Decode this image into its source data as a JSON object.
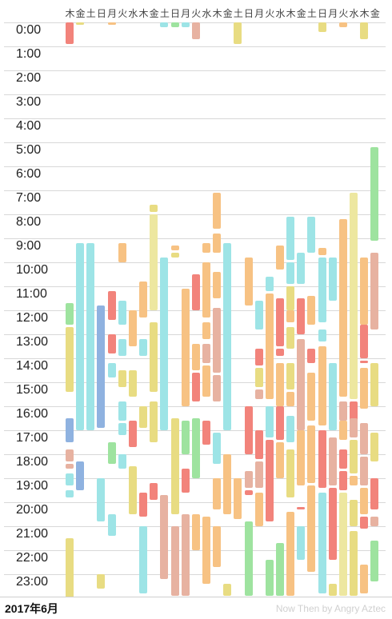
{
  "days": [
    "木",
    "金",
    "土",
    "日",
    "月",
    "火",
    "水",
    "木",
    "金",
    "土",
    "日",
    "月",
    "火",
    "水",
    "木",
    "金",
    "土",
    "日",
    "月",
    "火",
    "水",
    "木",
    "金",
    "土",
    "日",
    "月",
    "火",
    "水",
    "木",
    "金"
  ],
  "hours": [
    "0:00",
    "1:00",
    "2:00",
    "3:00",
    "4:00",
    "5:00",
    "6:00",
    "7:00",
    "8:00",
    "9:00",
    "10:00",
    "11:00",
    "12:00",
    "13:00",
    "14:00",
    "15:00",
    "16:00",
    "17:00",
    "18:00",
    "19:00",
    "20:00",
    "21:00",
    "22:00",
    "23:00"
  ],
  "footer": {
    "month": "2017年6月",
    "credit": "Now Then by Angry Aztec"
  },
  "colors": {
    "red": "#f2837b",
    "cyan": "#9de4e6",
    "yellow": "#e8dc82",
    "orange": "#f7c283",
    "green": "#9ee39f",
    "blue": "#8fb2e0",
    "salmon": "#e7b2a1",
    "lightyellow": "#ede7a0"
  },
  "activities": [
    {
      "day": 0,
      "start": 0.0,
      "end": 0.9,
      "color": "red"
    },
    {
      "day": 0,
      "start": 11.7,
      "end": 12.6,
      "color": "green"
    },
    {
      "day": 0,
      "start": 12.7,
      "end": 15.4,
      "color": "yellow"
    },
    {
      "day": 0,
      "start": 16.5,
      "end": 17.5,
      "color": "blue"
    },
    {
      "day": 0,
      "start": 17.8,
      "end": 18.3,
      "color": "salmon"
    },
    {
      "day": 0,
      "start": 18.4,
      "end": 18.6,
      "color": "salmon"
    },
    {
      "day": 0,
      "start": 18.8,
      "end": 19.3,
      "color": "cyan"
    },
    {
      "day": 0,
      "start": 19.5,
      "end": 19.8,
      "color": "cyan"
    },
    {
      "day": 0,
      "start": 21.5,
      "end": 23.95,
      "color": "yellow"
    },
    {
      "day": 1,
      "start": 0.0,
      "end": 0.1,
      "color": "yellow"
    },
    {
      "day": 1,
      "start": 9.2,
      "end": 17.0,
      "color": "cyan"
    },
    {
      "day": 1,
      "start": 18.3,
      "end": 19.5,
      "color": "blue"
    },
    {
      "day": 2,
      "start": 9.2,
      "end": 17.0,
      "color": "cyan"
    },
    {
      "day": 3,
      "start": 11.8,
      "end": 16.9,
      "color": "blue"
    },
    {
      "day": 3,
      "start": 19.0,
      "end": 20.8,
      "color": "cyan"
    },
    {
      "day": 3,
      "start": 23.0,
      "end": 23.6,
      "color": "yellow"
    },
    {
      "day": 4,
      "start": 0.0,
      "end": 0.1,
      "color": "orange"
    },
    {
      "day": 4,
      "start": 11.2,
      "end": 12.4,
      "color": "red"
    },
    {
      "day": 4,
      "start": 13.0,
      "end": 13.8,
      "color": "red"
    },
    {
      "day": 4,
      "start": 14.2,
      "end": 14.8,
      "color": "cyan"
    },
    {
      "day": 4,
      "start": 17.5,
      "end": 18.4,
      "color": "green"
    },
    {
      "day": 4,
      "start": 20.5,
      "end": 21.4,
      "color": "cyan"
    },
    {
      "day": 5,
      "start": 9.2,
      "end": 10.0,
      "color": "orange"
    },
    {
      "day": 5,
      "start": 11.6,
      "end": 12.6,
      "color": "cyan"
    },
    {
      "day": 5,
      "start": 13.2,
      "end": 13.9,
      "color": "cyan"
    },
    {
      "day": 5,
      "start": 14.5,
      "end": 15.2,
      "color": "yellow"
    },
    {
      "day": 5,
      "start": 15.8,
      "end": 16.6,
      "color": "cyan"
    },
    {
      "day": 5,
      "start": 16.7,
      "end": 17.2,
      "color": "cyan"
    },
    {
      "day": 5,
      "start": 18.0,
      "end": 18.6,
      "color": "cyan"
    },
    {
      "day": 6,
      "start": 12.0,
      "end": 13.5,
      "color": "orange"
    },
    {
      "day": 6,
      "start": 14.5,
      "end": 15.6,
      "color": "yellow"
    },
    {
      "day": 6,
      "start": 16.6,
      "end": 17.7,
      "color": "red"
    },
    {
      "day": 6,
      "start": 18.5,
      "end": 20.5,
      "color": "yellow"
    },
    {
      "day": 7,
      "start": 10.8,
      "end": 12.3,
      "color": "orange"
    },
    {
      "day": 7,
      "start": 13.2,
      "end": 13.9,
      "color": "cyan"
    },
    {
      "day": 7,
      "start": 16.0,
      "end": 16.9,
      "color": "yellow"
    },
    {
      "day": 7,
      "start": 19.6,
      "end": 20.6,
      "color": "red"
    },
    {
      "day": 7,
      "start": 21.0,
      "end": 23.8,
      "color": "cyan"
    },
    {
      "day": 8,
      "start": 7.6,
      "end": 7.9,
      "color": "yellow"
    },
    {
      "day": 8,
      "start": 8.0,
      "end": 12.0,
      "color": "lightyellow"
    },
    {
      "day": 8,
      "start": 12.5,
      "end": 15.4,
      "color": "yellow"
    },
    {
      "day": 8,
      "start": 15.8,
      "end": 17.5,
      "color": "yellow"
    },
    {
      "day": 8,
      "start": 19.2,
      "end": 19.9,
      "color": "red"
    },
    {
      "day": 9,
      "start": 0.0,
      "end": 0.2,
      "color": "cyan"
    },
    {
      "day": 9,
      "start": 9.8,
      "end": 17.0,
      "color": "cyan"
    },
    {
      "day": 9,
      "start": 19.7,
      "end": 23.2,
      "color": "salmon"
    },
    {
      "day": 10,
      "start": 0.0,
      "end": 0.2,
      "color": "green"
    },
    {
      "day": 10,
      "start": 9.3,
      "end": 9.5,
      "color": "orange"
    },
    {
      "day": 10,
      "start": 9.6,
      "end": 9.8,
      "color": "yellow"
    },
    {
      "day": 10,
      "start": 16.5,
      "end": 20.5,
      "color": "yellow"
    },
    {
      "day": 10,
      "start": 21.0,
      "end": 23.9,
      "color": "salmon"
    },
    {
      "day": 11,
      "start": 0.0,
      "end": 0.2,
      "color": "cyan"
    },
    {
      "day": 11,
      "start": 11.1,
      "end": 16.0,
      "color": "orange"
    },
    {
      "day": 11,
      "start": 16.6,
      "end": 18.0,
      "color": "green"
    },
    {
      "day": 11,
      "start": 18.6,
      "end": 19.6,
      "color": "red"
    },
    {
      "day": 11,
      "start": 20.5,
      "end": 23.9,
      "color": "salmon"
    },
    {
      "day": 12,
      "start": 0.0,
      "end": 0.7,
      "color": "salmon"
    },
    {
      "day": 12,
      "start": 10.5,
      "end": 12.0,
      "color": "red"
    },
    {
      "day": 12,
      "start": 13.4,
      "end": 14.5,
      "color": "orange"
    },
    {
      "day": 12,
      "start": 14.6,
      "end": 15.8,
      "color": "red"
    },
    {
      "day": 12,
      "start": 16.5,
      "end": 19.0,
      "color": "green"
    },
    {
      "day": 12,
      "start": 20.5,
      "end": 22.0,
      "color": "orange"
    },
    {
      "day": 13,
      "start": 9.2,
      "end": 9.6,
      "color": "orange"
    },
    {
      "day": 13,
      "start": 10.0,
      "end": 12.3,
      "color": "orange"
    },
    {
      "day": 13,
      "start": 12.5,
      "end": 13.2,
      "color": "orange"
    },
    {
      "day": 13,
      "start": 13.4,
      "end": 14.2,
      "color": "salmon"
    },
    {
      "day": 13,
      "start": 14.3,
      "end": 15.6,
      "color": "orange"
    },
    {
      "day": 13,
      "start": 16.6,
      "end": 17.6,
      "color": "red"
    },
    {
      "day": 13,
      "start": 20.6,
      "end": 23.4,
      "color": "orange"
    },
    {
      "day": 14,
      "start": 7.1,
      "end": 8.6,
      "color": "orange"
    },
    {
      "day": 14,
      "start": 8.8,
      "end": 9.6,
      "color": "orange"
    },
    {
      "day": 14,
      "start": 10.4,
      "end": 11.5,
      "color": "orange"
    },
    {
      "day": 14,
      "start": 11.9,
      "end": 14.6,
      "color": "salmon"
    },
    {
      "day": 14,
      "start": 14.7,
      "end": 15.8,
      "color": "salmon"
    },
    {
      "day": 14,
      "start": 17.1,
      "end": 18.4,
      "color": "cyan"
    },
    {
      "day": 14,
      "start": 19.0,
      "end": 20.3,
      "color": "orange"
    },
    {
      "day": 14,
      "start": 21.0,
      "end": 22.7,
      "color": "orange"
    },
    {
      "day": 15,
      "start": 9.2,
      "end": 17.0,
      "color": "cyan"
    },
    {
      "day": 15,
      "start": 18.0,
      "end": 20.5,
      "color": "orange"
    },
    {
      "day": 15,
      "start": 23.4,
      "end": 23.9,
      "color": "yellow"
    },
    {
      "day": 16,
      "start": 0.0,
      "end": 0.9,
      "color": "yellow"
    },
    {
      "day": 16,
      "start": 19.0,
      "end": 20.7,
      "color": "orange"
    },
    {
      "day": 17,
      "start": 9.8,
      "end": 11.8,
      "color": "orange"
    },
    {
      "day": 17,
      "start": 16.0,
      "end": 18.0,
      "color": "red"
    },
    {
      "day": 17,
      "start": 18.7,
      "end": 19.4,
      "color": "salmon"
    },
    {
      "day": 17,
      "start": 19.5,
      "end": 19.7,
      "color": "red"
    },
    {
      "day": 17,
      "start": 20.8,
      "end": 23.9,
      "color": "green"
    },
    {
      "day": 18,
      "start": 11.6,
      "end": 12.8,
      "color": "cyan"
    },
    {
      "day": 18,
      "start": 13.6,
      "end": 14.3,
      "color": "red"
    },
    {
      "day": 18,
      "start": 14.4,
      "end": 15.2,
      "color": "yellow"
    },
    {
      "day": 18,
      "start": 15.3,
      "end": 15.7,
      "color": "salmon"
    },
    {
      "day": 18,
      "start": 17.0,
      "end": 18.2,
      "color": "red"
    },
    {
      "day": 18,
      "start": 18.3,
      "end": 19.4,
      "color": "salmon"
    },
    {
      "day": 18,
      "start": 19.6,
      "end": 21.0,
      "color": "orange"
    },
    {
      "day": 19,
      "start": 10.6,
      "end": 11.2,
      "color": "cyan"
    },
    {
      "day": 19,
      "start": 11.3,
      "end": 15.7,
      "color": "orange"
    },
    {
      "day": 19,
      "start": 16.0,
      "end": 17.3,
      "color": "cyan"
    },
    {
      "day": 19,
      "start": 17.4,
      "end": 20.8,
      "color": "red"
    },
    {
      "day": 19,
      "start": 22.4,
      "end": 23.9,
      "color": "green"
    },
    {
      "day": 20,
      "start": 9.3,
      "end": 10.3,
      "color": "orange"
    },
    {
      "day": 20,
      "start": 11.5,
      "end": 13.5,
      "color": "red"
    },
    {
      "day": 20,
      "start": 13.6,
      "end": 13.9,
      "color": "red"
    },
    {
      "day": 20,
      "start": 14.2,
      "end": 16.0,
      "color": "orange"
    },
    {
      "day": 20,
      "start": 16.0,
      "end": 17.4,
      "color": "red"
    },
    {
      "day": 20,
      "start": 17.5,
      "end": 19.0,
      "color": "orange"
    },
    {
      "day": 20,
      "start": 21.7,
      "end": 23.9,
      "color": "green"
    },
    {
      "day": 21,
      "start": 8.1,
      "end": 9.9,
      "color": "cyan"
    },
    {
      "day": 21,
      "start": 10.0,
      "end": 10.9,
      "color": "cyan"
    },
    {
      "day": 21,
      "start": 11.0,
      "end": 12.0,
      "color": "yellow"
    },
    {
      "day": 21,
      "start": 12.0,
      "end": 12.5,
      "color": "orange"
    },
    {
      "day": 21,
      "start": 12.7,
      "end": 13.6,
      "color": "yellow"
    },
    {
      "day": 21,
      "start": 14.2,
      "end": 15.3,
      "color": "yellow"
    },
    {
      "day": 21,
      "start": 15.4,
      "end": 16.0,
      "color": "orange"
    },
    {
      "day": 21,
      "start": 16.4,
      "end": 17.5,
      "color": "cyan"
    },
    {
      "day": 21,
      "start": 17.8,
      "end": 19.8,
      "color": "yellow"
    },
    {
      "day": 21,
      "start": 20.4,
      "end": 23.9,
      "color": "orange"
    },
    {
      "day": 22,
      "start": 9.6,
      "end": 10.9,
      "color": "cyan"
    },
    {
      "day": 22,
      "start": 11.5,
      "end": 13.0,
      "color": "red"
    },
    {
      "day": 22,
      "start": 13.2,
      "end": 17.0,
      "color": "salmon"
    },
    {
      "day": 22,
      "start": 17.0,
      "end": 19.3,
      "color": "orange"
    },
    {
      "day": 22,
      "start": 20.2,
      "end": 20.3,
      "color": "red"
    },
    {
      "day": 22,
      "start": 21.0,
      "end": 22.4,
      "color": "cyan"
    },
    {
      "day": 23,
      "start": 8.1,
      "end": 9.6,
      "color": "cyan"
    },
    {
      "day": 23,
      "start": 11.4,
      "end": 12.6,
      "color": "orange"
    },
    {
      "day": 23,
      "start": 13.6,
      "end": 14.2,
      "color": "red"
    },
    {
      "day": 23,
      "start": 14.6,
      "end": 16.6,
      "color": "orange"
    },
    {
      "day": 23,
      "start": 16.8,
      "end": 19.2,
      "color": "orange"
    },
    {
      "day": 23,
      "start": 19.3,
      "end": 22.9,
      "color": "orange"
    },
    {
      "day": 24,
      "start": 0.0,
      "end": 0.4,
      "color": "yellow"
    },
    {
      "day": 24,
      "start": 9.4,
      "end": 9.7,
      "color": "orange"
    },
    {
      "day": 24,
      "start": 9.8,
      "end": 12.5,
      "color": "cyan"
    },
    {
      "day": 24,
      "start": 12.8,
      "end": 13.3,
      "color": "cyan"
    },
    {
      "day": 24,
      "start": 13.5,
      "end": 16.8,
      "color": "orange"
    },
    {
      "day": 24,
      "start": 17.0,
      "end": 19.4,
      "color": "red"
    },
    {
      "day": 24,
      "start": 19.6,
      "end": 23.8,
      "color": "cyan"
    },
    {
      "day": 25,
      "start": 9.8,
      "end": 11.6,
      "color": "cyan"
    },
    {
      "day": 25,
      "start": 14.2,
      "end": 17.0,
      "color": "cyan"
    },
    {
      "day": 25,
      "start": 17.3,
      "end": 19.3,
      "color": "salmon"
    },
    {
      "day": 25,
      "start": 19.4,
      "end": 22.4,
      "color": "red"
    },
    {
      "day": 25,
      "start": 23.4,
      "end": 23.9,
      "color": "yellow"
    },
    {
      "day": 26,
      "start": 0.0,
      "end": 0.2,
      "color": "orange"
    },
    {
      "day": 26,
      "start": 8.2,
      "end": 15.6,
      "color": "orange"
    },
    {
      "day": 26,
      "start": 15.8,
      "end": 16.6,
      "color": "salmon"
    },
    {
      "day": 26,
      "start": 16.6,
      "end": 17.4,
      "color": "orange"
    },
    {
      "day": 26,
      "start": 17.8,
      "end": 18.6,
      "color": "red"
    },
    {
      "day": 26,
      "start": 18.7,
      "end": 19.5,
      "color": "red"
    },
    {
      "day": 26,
      "start": 19.6,
      "end": 23.9,
      "color": "lightyellow"
    },
    {
      "day": 27,
      "start": 7.1,
      "end": 15.7,
      "color": "lightyellow"
    },
    {
      "day": 27,
      "start": 15.8,
      "end": 16.8,
      "color": "red"
    },
    {
      "day": 27,
      "start": 16.5,
      "end": 17.3,
      "color": "salmon"
    },
    {
      "day": 27,
      "start": 17.4,
      "end": 18.8,
      "color": "yellow"
    },
    {
      "day": 27,
      "start": 18.9,
      "end": 19.3,
      "color": "orange"
    },
    {
      "day": 27,
      "start": 19.9,
      "end": 21.0,
      "color": "yellow"
    },
    {
      "day": 27,
      "start": 21.2,
      "end": 23.9,
      "color": "yellow"
    },
    {
      "day": 28,
      "start": 0.0,
      "end": 0.7,
      "color": "yellow"
    },
    {
      "day": 28,
      "start": 9.8,
      "end": 12.6,
      "color": "orange"
    },
    {
      "day": 28,
      "start": 12.6,
      "end": 14.0,
      "color": "red"
    },
    {
      "day": 28,
      "start": 14.1,
      "end": 14.2,
      "color": "red"
    },
    {
      "day": 28,
      "start": 14.4,
      "end": 16.1,
      "color": "orange"
    },
    {
      "day": 28,
      "start": 16.7,
      "end": 18.0,
      "color": "salmon"
    },
    {
      "day": 28,
      "start": 18.1,
      "end": 19.3,
      "color": "salmon"
    },
    {
      "day": 28,
      "start": 19.4,
      "end": 20.5,
      "color": "orange"
    },
    {
      "day": 28,
      "start": 20.6,
      "end": 21.1,
      "color": "red"
    },
    {
      "day": 28,
      "start": 22.6,
      "end": 23.8,
      "color": "orange"
    },
    {
      "day": 29,
      "start": 5.2,
      "end": 9.1,
      "color": "green"
    },
    {
      "day": 29,
      "start": 9.6,
      "end": 12.8,
      "color": "salmon"
    },
    {
      "day": 29,
      "start": 14.2,
      "end": 16.0,
      "color": "yellow"
    },
    {
      "day": 29,
      "start": 17.1,
      "end": 18.3,
      "color": "yellow"
    },
    {
      "day": 29,
      "start": 19.0,
      "end": 20.3,
      "color": "red"
    },
    {
      "day": 29,
      "start": 20.6,
      "end": 21.0,
      "color": "salmon"
    },
    {
      "day": 29,
      "start": 21.6,
      "end": 23.3,
      "color": "green"
    }
  ]
}
